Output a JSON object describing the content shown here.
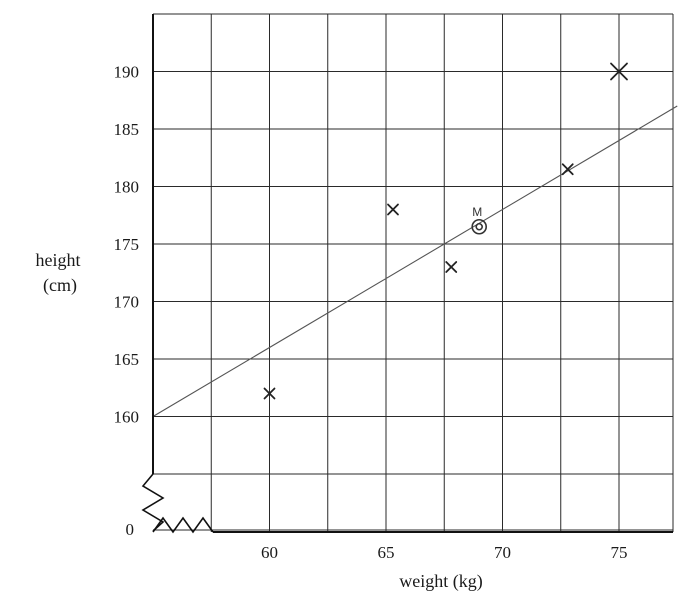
{
  "chart_data": {
    "type": "scatter",
    "title": "",
    "xlabel": "weight (kg)",
    "ylabel_lines": [
      "height",
      "(cm)"
    ],
    "xlim": [
      55,
      77.5
    ],
    "ylim": [
      155,
      195
    ],
    "x_ticks": [
      60,
      65,
      70,
      75
    ],
    "y_ticks": [
      160,
      165,
      170,
      175,
      180,
      185,
      190
    ],
    "y_break_label": "0",
    "grid": true,
    "points": [
      {
        "x": 60,
        "y": 162
      },
      {
        "x": 65.3,
        "y": 178
      },
      {
        "x": 67.8,
        "y": 173
      },
      {
        "x": 72.8,
        "y": 181.5
      },
      {
        "x": 75,
        "y": 190
      }
    ],
    "mean_point": {
      "x": 69,
      "y": 176.5,
      "label": "M"
    },
    "fit_line": {
      "x": [
        55,
        77.5
      ],
      "y": [
        160,
        187
      ]
    }
  }
}
